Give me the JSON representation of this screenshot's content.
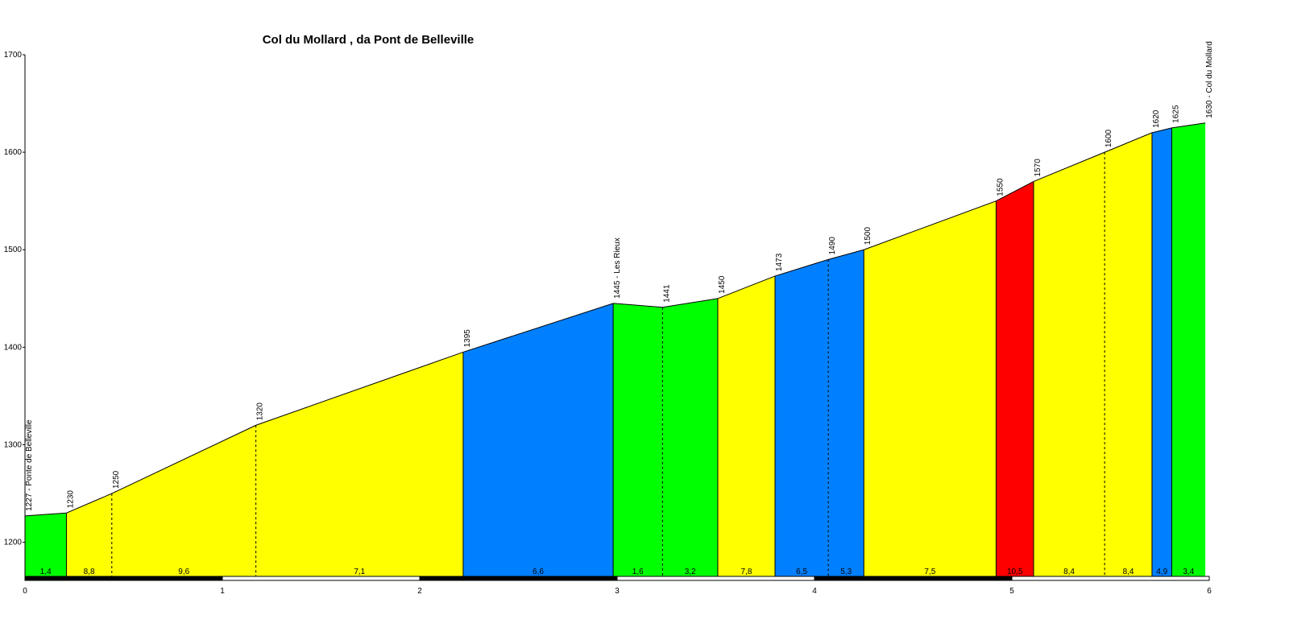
{
  "chart_data": {
    "type": "area",
    "title": "Col du Mollard , da Pont de Belleville",
    "xlim": [
      0,
      6
    ],
    "ylim": [
      1165,
      1700
    ],
    "x_ticks": [
      0,
      1,
      2,
      3,
      4,
      5,
      6
    ],
    "y_ticks": [
      1200,
      1300,
      1400,
      1500,
      1600,
      1700
    ],
    "colors": {
      "green": "#00ff00",
      "yellow": "#ffff00",
      "blue": "#0080ff",
      "red": "#ff0000"
    },
    "points": [
      {
        "x": 0.0,
        "y": 1227,
        "label": "1227 - Ponte de Belleville"
      },
      {
        "x": 0.21,
        "y": 1230,
        "label": "1230"
      },
      {
        "x": 0.44,
        "y": 1250,
        "label": "1250"
      },
      {
        "x": 1.17,
        "y": 1320,
        "label": "1320"
      },
      {
        "x": 2.22,
        "y": 1395,
        "label": "1395"
      },
      {
        "x": 2.98,
        "y": 1445,
        "label": "1445 - Les Rieux"
      },
      {
        "x": 3.23,
        "y": 1441,
        "label": "1441"
      },
      {
        "x": 3.51,
        "y": 1450,
        "label": "1450"
      },
      {
        "x": 3.8,
        "y": 1473,
        "label": "1473"
      },
      {
        "x": 4.07,
        "y": 1490,
        "label": "1490"
      },
      {
        "x": 4.25,
        "y": 1500,
        "label": "1500"
      },
      {
        "x": 4.92,
        "y": 1550,
        "label": "1550"
      },
      {
        "x": 5.11,
        "y": 1570,
        "label": "1570"
      },
      {
        "x": 5.47,
        "y": 1600,
        "label": "1600"
      },
      {
        "x": 5.71,
        "y": 1620,
        "label": "1620"
      },
      {
        "x": 5.81,
        "y": 1625,
        "label": "1625"
      },
      {
        "x": 5.98,
        "y": 1630,
        "label": "1630 - Col du Mollard"
      }
    ],
    "segments": [
      {
        "grade": "1,4",
        "color": "green"
      },
      {
        "grade": "8,8",
        "color": "yellow"
      },
      {
        "grade": "9,6",
        "color": "yellow"
      },
      {
        "grade": "7,1",
        "color": "yellow"
      },
      {
        "grade": "6,6",
        "color": "blue"
      },
      {
        "grade": "1,6",
        "color": "green"
      },
      {
        "grade": "3,2",
        "color": "green"
      },
      {
        "grade": "7,8",
        "color": "yellow"
      },
      {
        "grade": "6,5",
        "color": "blue"
      },
      {
        "grade": "5,3",
        "color": "blue"
      },
      {
        "grade": "7,5",
        "color": "yellow"
      },
      {
        "grade": "10,5",
        "color": "red"
      },
      {
        "grade": "8,4",
        "color": "yellow"
      },
      {
        "grade": "8,4",
        "color": "yellow"
      },
      {
        "grade": "4,9",
        "color": "blue"
      },
      {
        "grade": "3,4",
        "color": "green"
      }
    ]
  }
}
